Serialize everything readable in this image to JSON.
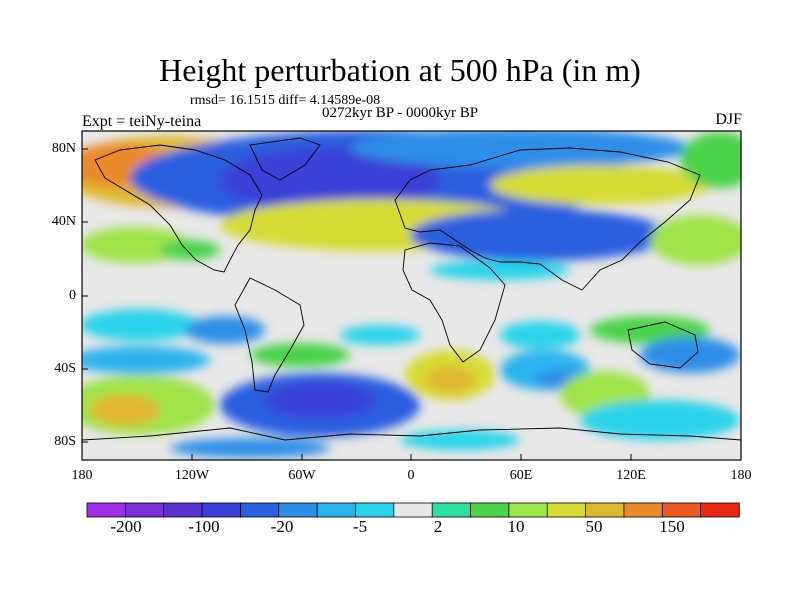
{
  "figure": {
    "title": "Height perturbation at 500 hPa (in m)",
    "stats": "rmsd= 16.1515 diff= 4.14589e-08",
    "period": "0272kyr BP - 0000kyr BP",
    "experiment": "Expt = teiNy-teina",
    "season": "DJF"
  },
  "lat_ticks": [
    "80N",
    "40N",
    "0",
    "40S",
    "80S"
  ],
  "lon_ticks": [
    "180",
    "120W",
    "60W",
    "0",
    "60E",
    "120E",
    "180"
  ],
  "colorbar": {
    "colors": [
      "#9d2ce6",
      "#7a2ed6",
      "#5a32d2",
      "#3b3fd8",
      "#2a5fe0",
      "#2d8ee8",
      "#2bb3ec",
      "#2bd3ea",
      "#e8e8e8",
      "#2de0a0",
      "#4cd34a",
      "#9fe34a",
      "#d6dc35",
      "#e0b830",
      "#ea8a2a",
      "#ec5a22",
      "#e62a14"
    ],
    "labels": [
      "-200",
      "-100",
      "-20",
      "-5",
      "2",
      "10",
      "50",
      "150"
    ]
  }
}
